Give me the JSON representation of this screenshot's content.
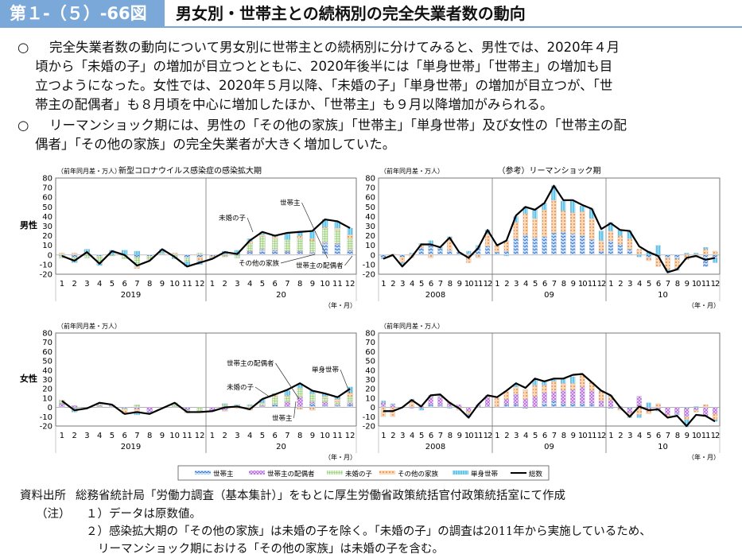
{
  "header": {
    "figure_no": "第１-（５）-66図",
    "title": "男女別・世帯主との続柄別の完全失業者数の動向"
  },
  "bullets": [
    {
      "mark": "○",
      "lines": [
        "完全失業者数の動向について男女別に世帯主との続柄別に分けてみると、男性では、2020年４月",
        "頃から「未婚の子」の増加が目立つとともに、2020年後半には「単身世帯」「世帯主」の増加も目",
        "立つようになった。女性では、2020年５月以降、「未婚の子」「単身世帯」の増加が目立つが、「世",
        "帯主の配偶者」も８月頃を中心に増加したほか、「世帯主」も９月以降増加がみられる。"
      ]
    },
    {
      "mark": "○",
      "lines": [
        "リーマンショック期には、男性の「その他の家族」「世帯主」「単身世帯」及び女性の「世帯主の配",
        "偶者」「その他の家族」の完全失業者が大きく増加していた。"
      ]
    }
  ],
  "labels": {
    "male": "男性",
    "female": "女性",
    "unit": "（前年同月差・万人）",
    "xunit": "（年・月）"
  },
  "legend": [
    {
      "key": "head",
      "label": "世帯主"
    },
    {
      "key": "spouse",
      "label": "世帯主の配偶者"
    },
    {
      "key": "unmarried",
      "label": "未婚の子"
    },
    {
      "key": "other",
      "label": "その他の家族"
    },
    {
      "key": "single",
      "label": "単身世帯"
    },
    {
      "key": "total",
      "label": "総数"
    }
  ],
  "colors": {
    "head": "#4a86d8",
    "spouse": "#c77be0",
    "unmarried": "#7cc35a",
    "other": "#f0964a",
    "single": "#2cb5ea",
    "total": "#000000"
  },
  "chart_data": [
    {
      "id": "male_covid",
      "type": "bar",
      "title": "新型コロナウイルス感染症の感染拡大期",
      "ylabel": "（前年同月差・万人）",
      "ylim": [
        -20,
        80
      ],
      "yticks": [
        -20,
        -10,
        0,
        10,
        20,
        30,
        40,
        50,
        60,
        70,
        80
      ],
      "months": [
        "1",
        "2",
        "3",
        "4",
        "5",
        "6",
        "7",
        "8",
        "9",
        "10",
        "11",
        "12",
        "1",
        "2",
        "3",
        "4",
        "5",
        "6",
        "7",
        "8",
        "9",
        "10",
        "11",
        "12"
      ],
      "years": [
        "2019",
        "20"
      ],
      "series": {
        "head": [
          -1,
          -2,
          1,
          -1,
          0,
          0,
          -2,
          -1,
          1,
          0,
          -3,
          -2,
          -1,
          1,
          0,
          3,
          5,
          4,
          3,
          3,
          2,
          12,
          11,
          4
        ],
        "spouse": [
          0,
          0,
          0,
          0,
          0,
          0,
          0,
          0,
          0,
          0,
          0,
          0,
          0,
          0,
          0,
          1,
          1,
          1,
          1,
          1,
          1,
          1,
          1,
          1
        ],
        "unmarried": [
          -2,
          -3,
          -3,
          -6,
          -1,
          -4,
          -10,
          -4,
          1,
          -2,
          -4,
          2,
          0,
          -1,
          -3,
          8,
          13,
          12,
          12,
          13,
          12,
          15,
          14,
          12
        ],
        "other": [
          2,
          2,
          2,
          -2,
          0,
          0,
          -2,
          0,
          0,
          2,
          0,
          -4,
          -2,
          -1,
          0,
          2,
          2,
          2,
          0,
          3,
          2,
          1,
          2,
          4
        ],
        "single": [
          0,
          -3,
          3,
          -2,
          5,
          5,
          4,
          0,
          4,
          -2,
          -5,
          -4,
          -1,
          3,
          5,
          3,
          3,
          1,
          6,
          5,
          8,
          8,
          7,
          7
        ],
        "total": [
          -1,
          -6,
          3,
          -9,
          4,
          0,
          -11,
          -6,
          6,
          -2,
          -12,
          -8,
          -4,
          3,
          1,
          15,
          24,
          20,
          23,
          24,
          25,
          37,
          35,
          28
        ]
      },
      "annotations": [
        "世帯主",
        "未婚の子",
        "その他の家族",
        "世帯主の配偶者"
      ]
    },
    {
      "id": "male_lehman",
      "type": "bar",
      "title": "（参考）リーマンショック期",
      "ylabel": "（前年同月差・万人）",
      "ylim": [
        -20,
        80
      ],
      "yticks": [
        -20,
        -10,
        0,
        10,
        20,
        30,
        40,
        50,
        60,
        70,
        80
      ],
      "months": [
        "1",
        "2",
        "3",
        "4",
        "5",
        "6",
        "7",
        "8",
        "9",
        "10",
        "11",
        "12",
        "1",
        "2",
        "3",
        "4",
        "5",
        "6",
        "7",
        "8",
        "9",
        "10",
        "11",
        "12",
        "1",
        "2",
        "3",
        "4",
        "5",
        "6",
        "7",
        "8",
        "9",
        "10",
        "11",
        "12"
      ],
      "years": [
        "2008",
        "09",
        "10"
      ],
      "series": {
        "head": [
          -3,
          0,
          -2,
          2,
          8,
          12,
          7,
          5,
          3,
          2,
          7,
          9,
          3,
          4,
          17,
          21,
          18,
          19,
          23,
          24,
          22,
          20,
          16,
          4,
          15,
          11,
          6,
          1,
          -3,
          -2,
          -3,
          -4,
          1,
          1,
          -12,
          -3
        ],
        "spouse": [
          0,
          0,
          0,
          0,
          0,
          0,
          0,
          0,
          0,
          0,
          0,
          0,
          0,
          0,
          0,
          0,
          0,
          0,
          0,
          0,
          0,
          0,
          0,
          0,
          0,
          0,
          0,
          0,
          0,
          0,
          0,
          0,
          0,
          0,
          0,
          0
        ],
        "unmarried": [
          0,
          0,
          0,
          0,
          0,
          0,
          0,
          0,
          0,
          0,
          0,
          0,
          0,
          0,
          0,
          0,
          0,
          0,
          0,
          0,
          0,
          0,
          0,
          0,
          0,
          0,
          0,
          0,
          0,
          0,
          0,
          0,
          0,
          0,
          0,
          0
        ],
        "other": [
          0,
          1,
          -6,
          -3,
          3,
          -3,
          0,
          12,
          0,
          -8,
          -3,
          13,
          7,
          11,
          17,
          22,
          20,
          28,
          34,
          22,
          22,
          25,
          22,
          11,
          10,
          9,
          11,
          5,
          -3,
          -10,
          -12,
          -10,
          -5,
          -2,
          6,
          4
        ],
        "single": [
          -1,
          0,
          -2,
          0,
          1,
          3,
          1,
          2,
          0,
          2,
          3,
          4,
          0,
          -1,
          6,
          7,
          9,
          7,
          15,
          10,
          12,
          6,
          10,
          10,
          9,
          6,
          8,
          -2,
          4,
          10,
          -2,
          -2,
          1,
          1,
          2,
          -5
        ],
        "total": [
          -4,
          0,
          -12,
          -2,
          11,
          11,
          8,
          18,
          3,
          -3,
          7,
          26,
          10,
          15,
          41,
          50,
          47,
          54,
          72,
          57,
          57,
          52,
          48,
          27,
          33,
          26,
          25,
          9,
          3,
          -1,
          -18,
          -15,
          -3,
          -1,
          -5,
          -3
        ]
      },
      "annotations": []
    },
    {
      "id": "female_covid",
      "type": "bar",
      "title": "",
      "ylabel": "（前年同月差・万人）",
      "ylim": [
        -20,
        80
      ],
      "yticks": [
        -20,
        -10,
        0,
        10,
        20,
        30,
        40,
        50,
        60,
        70,
        80
      ],
      "months": [
        "1",
        "2",
        "3",
        "4",
        "5",
        "6",
        "7",
        "8",
        "9",
        "10",
        "11",
        "12",
        "1",
        "2",
        "3",
        "4",
        "5",
        "6",
        "7",
        "8",
        "9",
        "10",
        "11",
        "12"
      ],
      "years": [
        "2019",
        "20"
      ],
      "series": {
        "head": [
          1,
          -1,
          0,
          1,
          1,
          -1,
          0,
          0,
          0,
          1,
          -1,
          0,
          0,
          1,
          1,
          0,
          1,
          3,
          1,
          1,
          4,
          2,
          2,
          3
        ],
        "spouse": [
          3,
          2,
          0,
          1,
          1,
          0,
          -2,
          -5,
          0,
          0,
          -2,
          0,
          -3,
          -3,
          0,
          0,
          1,
          0,
          5,
          10,
          2,
          4,
          1,
          2
        ],
        "unmarried": [
          3,
          -2,
          0,
          2,
          1,
          -1,
          3,
          0,
          0,
          3,
          -1,
          -4,
          0,
          2,
          1,
          2,
          2,
          9,
          6,
          10,
          9,
          4,
          3,
          7
        ],
        "other": [
          1,
          0,
          0,
          0,
          0,
          -4,
          -4,
          0,
          0,
          0,
          -2,
          0,
          0,
          -1,
          -1,
          -3,
          1,
          2,
          1,
          -2,
          -3,
          2,
          3,
          4
        ],
        "single": [
          0,
          -2,
          0,
          1,
          0,
          -1,
          -2,
          -1,
          0,
          1,
          0,
          0,
          0,
          1,
          1,
          1,
          4,
          1,
          5,
          4,
          3,
          3,
          3,
          6
        ],
        "total": [
          7,
          -3,
          -1,
          5,
          3,
          -7,
          -5,
          -7,
          -1,
          5,
          -5,
          -5,
          -4,
          0,
          1,
          -2,
          9,
          14,
          19,
          26,
          18,
          15,
          11,
          20
        ]
      },
      "annotations": [
        "世帯主の配偶者",
        "未婚の子",
        "単身世帯",
        "世帯主"
      ]
    },
    {
      "id": "female_lehman",
      "type": "bar",
      "title": "",
      "ylabel": "（前年同月差・万人）",
      "ylim": [
        -20,
        80
      ],
      "yticks": [
        -20,
        -10,
        0,
        10,
        20,
        30,
        40,
        50,
        60,
        70,
        80
      ],
      "months": [
        "1",
        "2",
        "3",
        "4",
        "5",
        "6",
        "7",
        "8",
        "9",
        "10",
        "11",
        "12",
        "1",
        "2",
        "3",
        "4",
        "5",
        "6",
        "7",
        "8",
        "9",
        "10",
        "11",
        "12",
        "1",
        "2",
        "3",
        "4",
        "5",
        "6",
        "7",
        "8",
        "9",
        "10",
        "11",
        "12"
      ],
      "years": [
        "2008",
        "09",
        "10"
      ],
      "series": {
        "head": [
          1,
          0,
          0,
          1,
          -1,
          3,
          2,
          1,
          0,
          0,
          0,
          1,
          1,
          3,
          3,
          -1,
          0,
          5,
          7,
          4,
          4,
          4,
          3,
          1,
          -1,
          0,
          -1,
          0,
          0,
          0,
          0,
          0,
          -1,
          0,
          0,
          0
        ],
        "spouse": [
          4,
          3,
          0,
          -1,
          1,
          8,
          9,
          3,
          3,
          -4,
          2,
          10,
          0,
          6,
          11,
          9,
          12,
          11,
          10,
          14,
          15,
          18,
          15,
          6,
          8,
          -1,
          -5,
          12,
          -2,
          -3,
          -8,
          -7,
          -9,
          -3,
          -9,
          -7
        ],
        "unmarried": [
          0,
          0,
          0,
          0,
          0,
          0,
          0,
          0,
          0,
          0,
          0,
          0,
          0,
          0,
          0,
          0,
          0,
          0,
          0,
          0,
          0,
          0,
          0,
          0,
          0,
          0,
          0,
          0,
          0,
          0,
          0,
          0,
          0,
          0,
          0,
          0
        ],
        "other": [
          -10,
          -10,
          0,
          6,
          0,
          1,
          1,
          2,
          -3,
          -3,
          0,
          1,
          9,
          8,
          8,
          10,
          12,
          8,
          11,
          8,
          7,
          13,
          9,
          10,
          4,
          -2,
          -4,
          -8,
          -5,
          4,
          -2,
          0,
          -3,
          -2,
          3,
          -6
        ],
        "single": [
          2,
          1,
          0,
          2,
          -2,
          1,
          1,
          -1,
          0,
          -3,
          1,
          1,
          0,
          0,
          3,
          0,
          6,
          4,
          2,
          5,
          7,
          0,
          0,
          1,
          1,
          1,
          -1,
          -3,
          5,
          -1,
          0,
          -1,
          -8,
          1,
          -1,
          -2
        ],
        "total": [
          -4,
          -4,
          0,
          8,
          1,
          13,
          14,
          5,
          -1,
          -11,
          3,
          13,
          11,
          18,
          26,
          21,
          31,
          28,
          31,
          31,
          35,
          36,
          27,
          18,
          13,
          0,
          -10,
          1,
          -3,
          -2,
          -11,
          -9,
          -20,
          -8,
          -9,
          -15
        ]
      },
      "annotations": []
    }
  ],
  "footer": {
    "source_label": "資料出所",
    "source": "総務省統計局「労働力調査（基本集計）」をもとに厚生労働省政策統括官付政策統括室にて作成",
    "note_label": "（注）",
    "notes": [
      "１）データは原数値。",
      "２）感染拡大期の「その他の家族」は未婚の子を除く。「未婚の子」の調査は2011年から実施しているため、",
      "リーマンショック期における「その他の家族」は未婚の子を含む。"
    ]
  }
}
